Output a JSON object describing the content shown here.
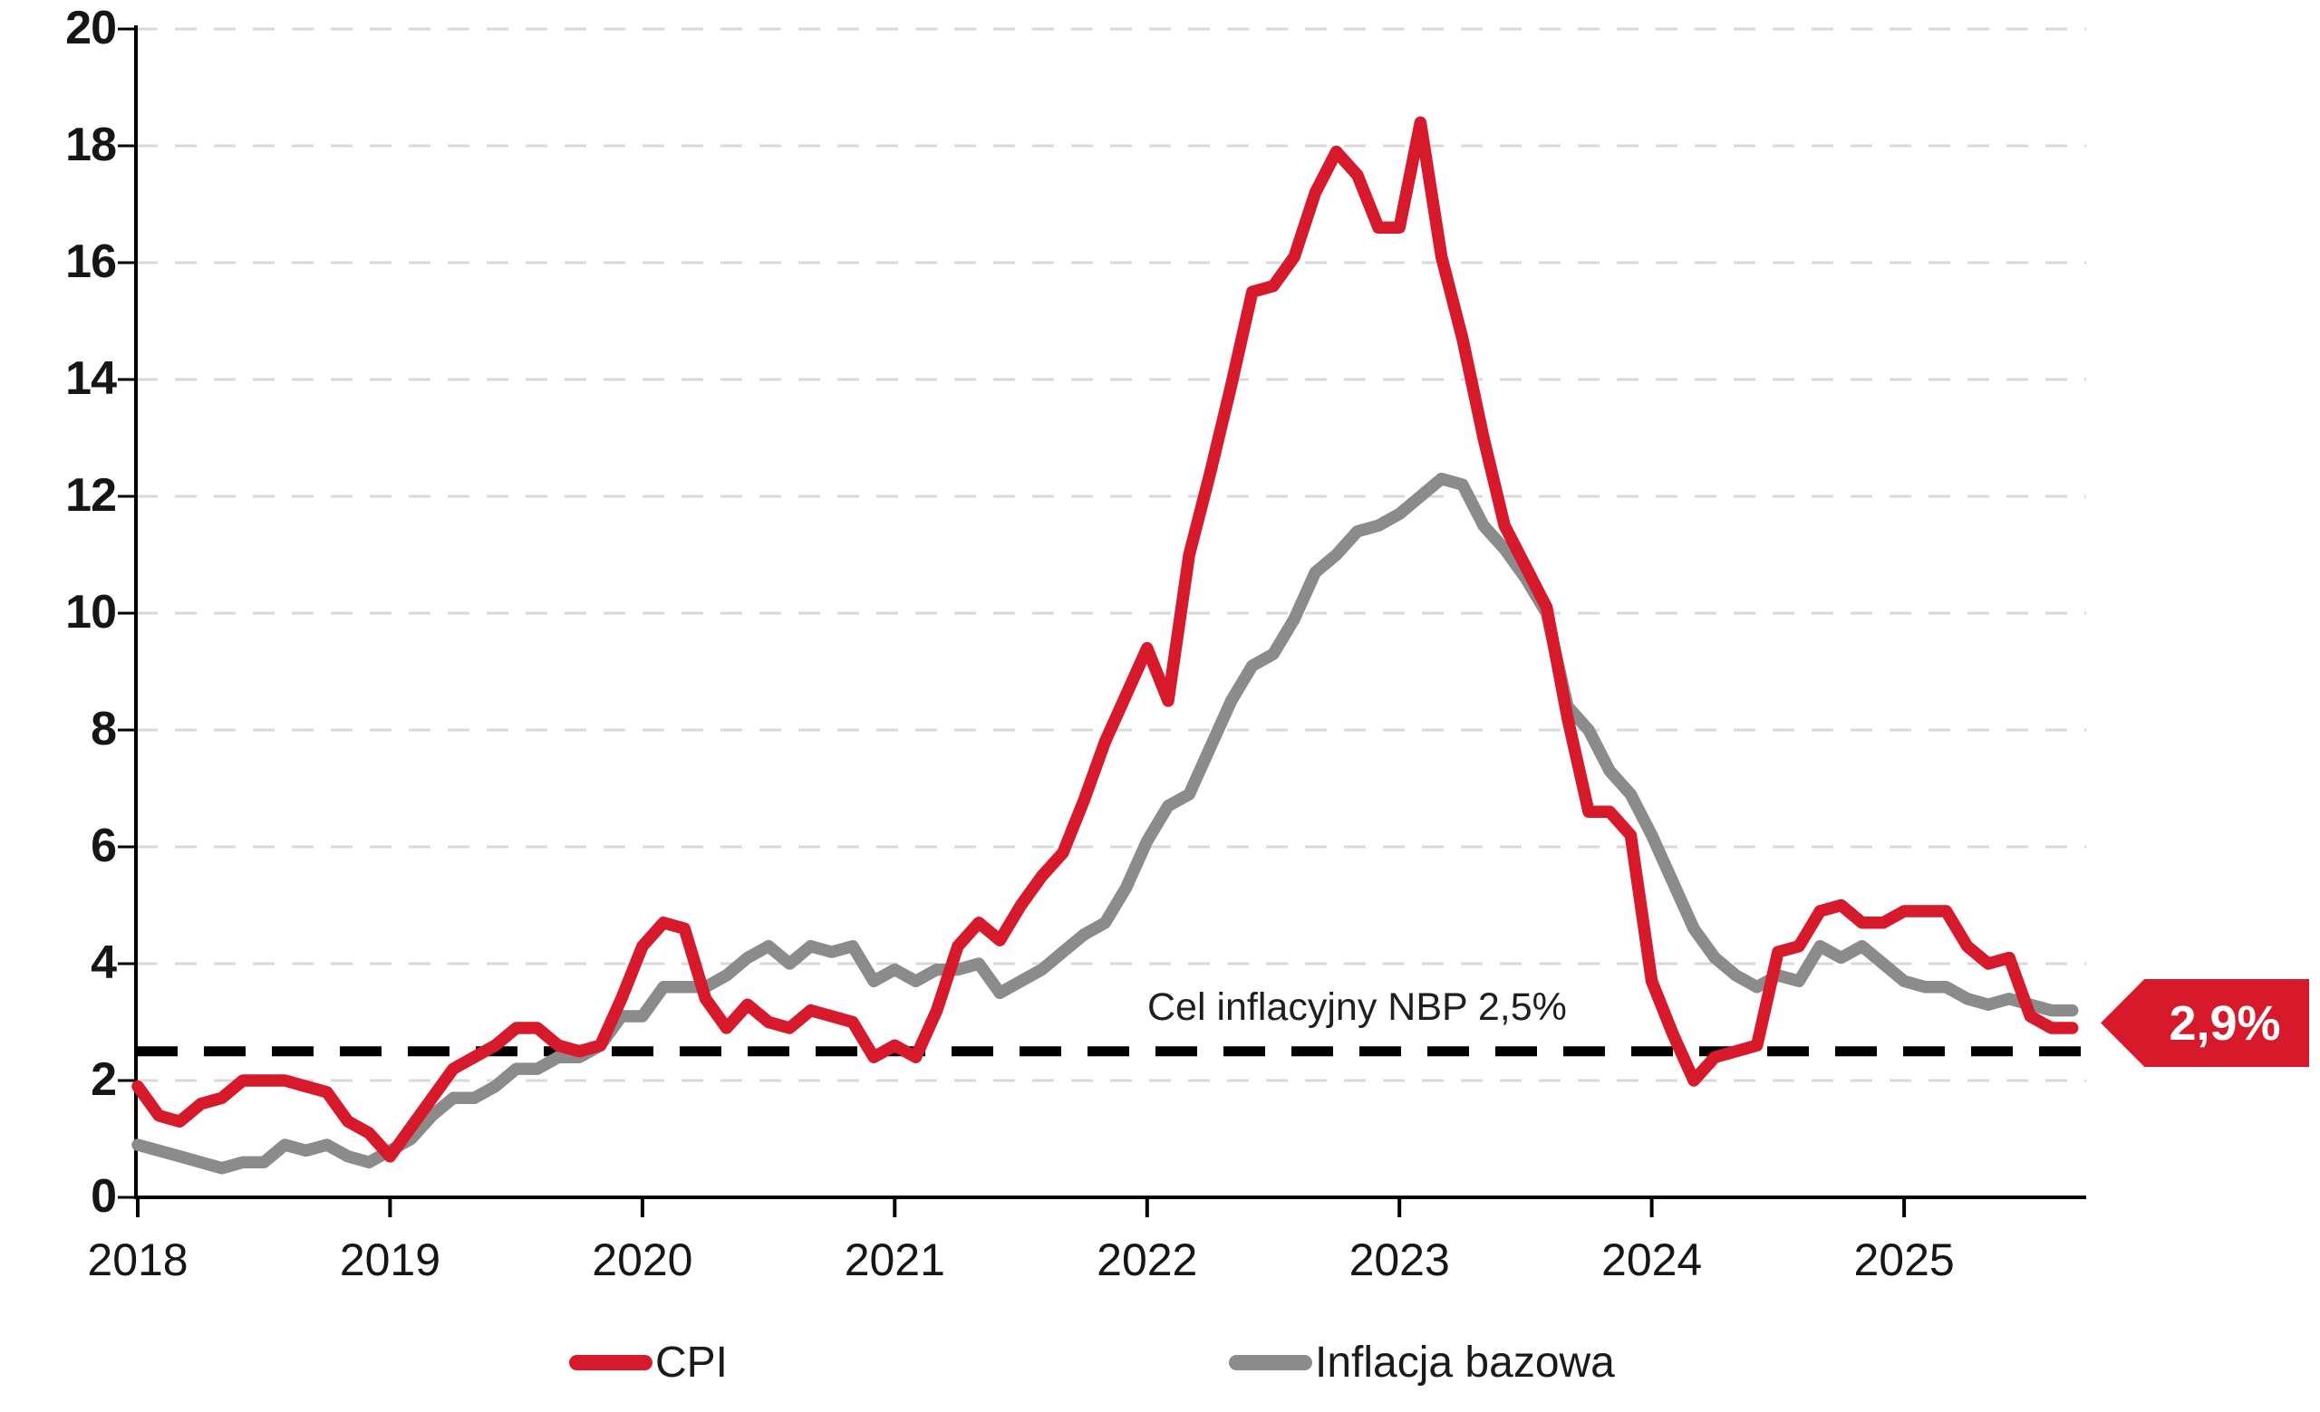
{
  "chart_data": {
    "type": "line",
    "title": "",
    "x_start": "2018-01",
    "x_end": "2025-09",
    "x_interval": "monthly",
    "x_tick_labels": [
      "2018",
      "2019",
      "2020",
      "2021",
      "2022",
      "2023",
      "2024",
      "2025"
    ],
    "y_ticks": [
      0,
      2,
      4,
      6,
      8,
      10,
      12,
      14,
      16,
      18,
      20
    ],
    "ylim": [
      0,
      20
    ],
    "grid": "horizontal dashed light-gray",
    "legend_position": "bottom",
    "series": [
      {
        "name": "CPI",
        "color": "#d7192c",
        "values": [
          1.9,
          1.4,
          1.3,
          1.6,
          1.7,
          2.0,
          2.0,
          2.0,
          1.9,
          1.8,
          1.3,
          1.1,
          0.7,
          1.2,
          1.7,
          2.2,
          2.4,
          2.6,
          2.9,
          2.9,
          2.6,
          2.5,
          2.6,
          3.4,
          4.3,
          4.7,
          4.6,
          3.4,
          2.9,
          3.3,
          3.0,
          2.9,
          3.2,
          3.1,
          3.0,
          2.4,
          2.6,
          2.4,
          3.2,
          4.3,
          4.7,
          4.4,
          5.0,
          5.5,
          5.9,
          6.8,
          7.8,
          8.6,
          9.4,
          8.5,
          11.0,
          12.4,
          13.9,
          15.5,
          15.6,
          16.1,
          17.2,
          17.9,
          17.5,
          16.6,
          16.6,
          18.4,
          16.1,
          14.7,
          13.0,
          11.5,
          10.8,
          10.1,
          8.2,
          6.6,
          6.6,
          6.2,
          3.7,
          2.8,
          2.0,
          2.4,
          2.5,
          2.6,
          4.2,
          4.3,
          4.9,
          5.0,
          4.7,
          4.7,
          4.9,
          4.9,
          4.9,
          4.3,
          4.0,
          4.1,
          3.1,
          2.9,
          2.9
        ]
      },
      {
        "name": "Inflacja bazowa",
        "color": "#8b8b8b",
        "values": [
          0.9,
          0.8,
          0.7,
          0.6,
          0.5,
          0.6,
          0.6,
          0.9,
          0.8,
          0.9,
          0.7,
          0.6,
          0.8,
          1.0,
          1.4,
          1.7,
          1.7,
          1.9,
          2.2,
          2.2,
          2.4,
          2.4,
          2.6,
          3.1,
          3.1,
          3.6,
          3.6,
          3.6,
          3.8,
          4.1,
          4.3,
          4.0,
          4.3,
          4.2,
          4.3,
          3.7,
          3.9,
          3.7,
          3.9,
          3.9,
          4.0,
          3.5,
          3.7,
          3.9,
          4.2,
          4.5,
          4.7,
          5.3,
          6.1,
          6.7,
          6.9,
          7.7,
          8.5,
          9.1,
          9.3,
          9.9,
          10.7,
          11.0,
          11.4,
          11.5,
          11.7,
          12.0,
          12.3,
          12.2,
          11.5,
          11.1,
          10.6,
          10.0,
          8.4,
          8.0,
          7.3,
          6.9,
          6.2,
          5.4,
          4.6,
          4.1,
          3.8,
          3.6,
          3.8,
          3.7,
          4.3,
          4.1,
          4.3,
          4.0,
          3.7,
          3.6,
          3.6,
          3.4,
          3.3,
          3.4,
          3.3,
          3.2,
          3.2
        ]
      }
    ],
    "reference_line": {
      "value": 2.5,
      "label": "Cel inflacyjny NBP 2,5%",
      "style": "black dashed"
    },
    "end_annotation": {
      "text": "2,9%",
      "series": "CPI"
    }
  },
  "annotation": {
    "target_label": "Cel inflacyjny NBP 2,5%"
  },
  "badge": {
    "value": "2,9%",
    "color": "#d7192c",
    "text_color": "#ffffff"
  },
  "legend": {
    "items": [
      {
        "label": "CPI",
        "color": "#d7192c"
      },
      {
        "label": "Inflacja bazowa",
        "color": "#8b8b8b"
      }
    ]
  }
}
